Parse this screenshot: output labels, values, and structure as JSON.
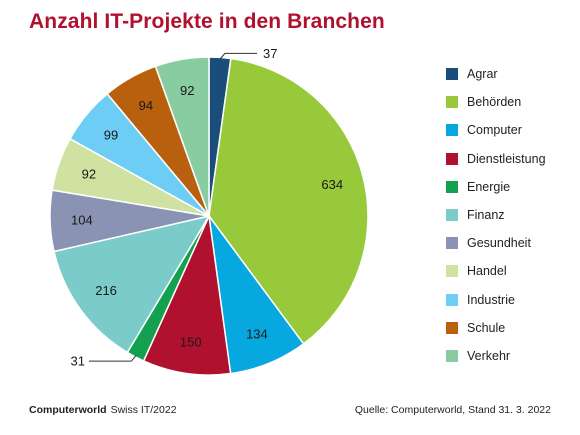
{
  "title": "Anzahl IT-Projekte in den Branchen",
  "chart_data": {
    "type": "pie",
    "title": "Anzahl IT-Projekte in den Branchen",
    "legend_position": "right",
    "slices": [
      {
        "label": "Agrar",
        "value": 37,
        "color": "#1a4e7a"
      },
      {
        "label": "Behörden",
        "value": 634,
        "color": "#97c93b"
      },
      {
        "label": "Computer",
        "value": 134,
        "color": "#07a7e0"
      },
      {
        "label": "Dienstleistung",
        "value": 150,
        "color": "#b0112f"
      },
      {
        "label": "Energie",
        "value": 31,
        "color": "#13a150"
      },
      {
        "label": "Finanz",
        "value": 216,
        "color": "#7ccbcb"
      },
      {
        "label": "Gesundheit",
        "value": 104,
        "color": "#8a93b3"
      },
      {
        "label": "Handel",
        "value": 92,
        "color": "#d0e2a1"
      },
      {
        "label": "Industrie",
        "value": 99,
        "color": "#6dcdf4"
      },
      {
        "label": "Schule",
        "value": 94,
        "color": "#b8600e"
      },
      {
        "label": "Verkehr",
        "value": 92,
        "color": "#89cca0"
      }
    ]
  },
  "footer": {
    "brand": "Computerworld",
    "publication": "Swiss IT/2022",
    "source": "Quelle: Computerworld, Stand 31. 3. 2022"
  }
}
